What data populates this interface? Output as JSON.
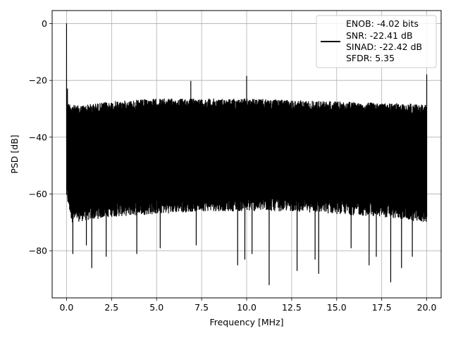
{
  "chart_data": {
    "type": "line",
    "title": "",
    "xlabel": "Frequency [MHz]",
    "ylabel": "PSD [dB]",
    "xlim": [
      -0.8,
      20.8
    ],
    "ylim": [
      -96.6,
      4.6
    ],
    "xticks": [
      0.0,
      2.5,
      5.0,
      7.5,
      10.0,
      12.5,
      15.0,
      17.5,
      20.0
    ],
    "xtick_labels": [
      "0.0",
      "2.5",
      "5.0",
      "7.5",
      "10.0",
      "12.5",
      "15.0",
      "17.5",
      "20.0"
    ],
    "yticks": [
      0,
      -20,
      -40,
      -60,
      -80
    ],
    "ytick_labels": [
      "0",
      "−20",
      "−40",
      "−60",
      "−80"
    ],
    "grid": true,
    "legend_position": "top-right",
    "legend_lines": [
      "ENOB: -4.02 bits",
      "SNR: -22.41 dB",
      "SINAD: -22.42 dB",
      "SFDR: 5.35"
    ],
    "line_color": "#000000",
    "series": [
      {
        "name": "ENOB: -4.02 bits\nSNR: -22.41 dB\nSINAD: -22.42 dB\nSFDR: 5.35",
        "noise_ceiling": [
          [
            0.2,
            -28
          ],
          [
            0.5,
            -29
          ],
          [
            2.5,
            -27.5
          ],
          [
            5.0,
            -26.5
          ],
          [
            7.5,
            -26.5
          ],
          [
            10.0,
            -26.5
          ],
          [
            12.5,
            -27
          ],
          [
            15.0,
            -27.5
          ],
          [
            17.5,
            -28
          ],
          [
            20.0,
            -28.5
          ]
        ],
        "noise_floor": [
          [
            0.0,
            -62
          ],
          [
            0.3,
            -70
          ],
          [
            2.5,
            -68
          ],
          [
            5.0,
            -67
          ],
          [
            7.5,
            -66
          ],
          [
            10.0,
            -66
          ],
          [
            12.5,
            -66
          ],
          [
            15.0,
            -67
          ],
          [
            17.5,
            -68
          ],
          [
            20.0,
            -70
          ]
        ],
        "peaks": [
          [
            0.0,
            0
          ],
          [
            0.05,
            -23
          ],
          [
            6.9,
            -20.3
          ],
          [
            10.0,
            -18.5
          ],
          [
            20.0,
            -18
          ]
        ],
        "dips": [
          [
            0.3,
            -65
          ],
          [
            0.35,
            -81
          ],
          [
            1.1,
            -78
          ],
          [
            1.4,
            -86
          ],
          [
            2.2,
            -82
          ],
          [
            3.9,
            -81
          ],
          [
            5.2,
            -79
          ],
          [
            7.2,
            -78
          ],
          [
            9.5,
            -85
          ],
          [
            9.9,
            -83
          ],
          [
            10.3,
            -81
          ],
          [
            11.25,
            -92
          ],
          [
            12.8,
            -87
          ],
          [
            13.8,
            -83
          ],
          [
            14.0,
            -88
          ],
          [
            15.8,
            -79
          ],
          [
            16.8,
            -85
          ],
          [
            17.2,
            -82
          ],
          [
            18.0,
            -91
          ],
          [
            18.6,
            -86
          ],
          [
            19.2,
            -82
          ],
          [
            20.0,
            -68
          ]
        ]
      }
    ]
  }
}
